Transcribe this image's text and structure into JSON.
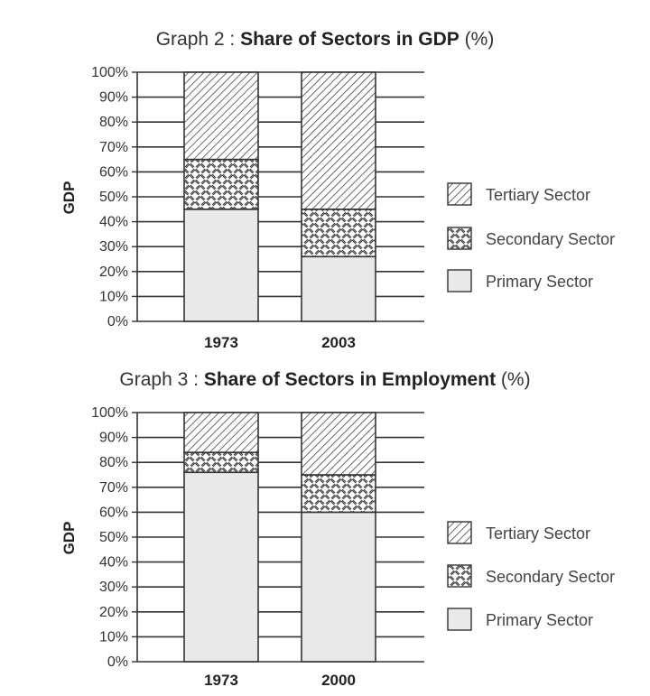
{
  "chart_data": [
    {
      "type": "bar",
      "stacked": true,
      "title_prefix": "Graph 2 : ",
      "title_bold": "Share of Sectors in GDP",
      "title_suffix": " (%)",
      "ylabel": "GDP",
      "xlabel": "",
      "ylim": [
        0,
        100
      ],
      "yticks": [
        "0%",
        "10%",
        "20%",
        "30%",
        "40%",
        "50%",
        "60%",
        "70%",
        "80%",
        "90%",
        "100%"
      ],
      "categories": [
        "1973",
        "2003"
      ],
      "series": [
        {
          "name": "Primary Sector",
          "values": [
            45,
            26
          ]
        },
        {
          "name": "Secondary Sector",
          "values": [
            20,
            19
          ]
        },
        {
          "name": "Tertiary Sector",
          "values": [
            35,
            55
          ]
        }
      ],
      "legend": [
        "Tertiary Sector",
        "Secondary Sector",
        "Primary Sector"
      ],
      "legend_position": "right",
      "grid": true
    },
    {
      "type": "bar",
      "stacked": true,
      "title_prefix": "Graph 3 : ",
      "title_bold": "Share of Sectors in Employment",
      "title_suffix": " (%)",
      "ylabel": "GDP",
      "xlabel": "",
      "ylim": [
        0,
        100
      ],
      "yticks": [
        "0%",
        "10%",
        "20%",
        "30%",
        "40%",
        "50%",
        "60%",
        "70%",
        "80%",
        "90%",
        "100%"
      ],
      "categories": [
        "1973",
        "2000"
      ],
      "series": [
        {
          "name": "Primary Sector",
          "values": [
            76,
            60
          ]
        },
        {
          "name": "Secondary Sector",
          "values": [
            8,
            15
          ]
        },
        {
          "name": "Tertiary Sector",
          "values": [
            16,
            25
          ]
        }
      ],
      "legend": [
        "Tertiary Sector",
        "Secondary Sector",
        "Primary Sector"
      ],
      "legend_position": "right",
      "grid": true
    }
  ],
  "colors": {
    "primary_fill": "#e9e9e9",
    "stroke": "#333333",
    "pattern": "#444444"
  }
}
